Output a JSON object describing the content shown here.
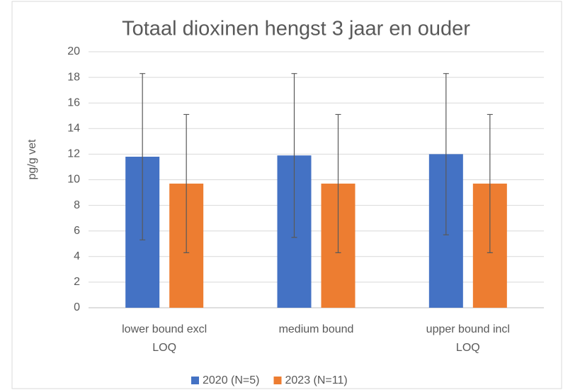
{
  "chart_data": {
    "type": "bar",
    "title": "Totaal dioxinen hengst 3 jaar en ouder",
    "y_label": "pg/g vet",
    "categories": [
      "lower bound excl LOQ",
      "medium bound",
      "upper bound incl LOQ"
    ],
    "series": [
      {
        "name": "2020 (N=5)",
        "color": "#4472c4",
        "values": [
          11.8,
          11.9,
          12.0
        ],
        "errors": [
          6.5,
          6.4,
          6.3
        ]
      },
      {
        "name": "2023 (N=11)",
        "color": "#ed7d31",
        "values": [
          9.7,
          9.7,
          9.7
        ],
        "errors": [
          5.4,
          5.4,
          5.4
        ]
      }
    ],
    "ylim": [
      0,
      20
    ],
    "yticks": [
      0,
      2,
      4,
      6,
      8,
      10,
      12,
      14,
      16,
      18,
      20
    ],
    "grid": true,
    "legend": "bottom"
  }
}
